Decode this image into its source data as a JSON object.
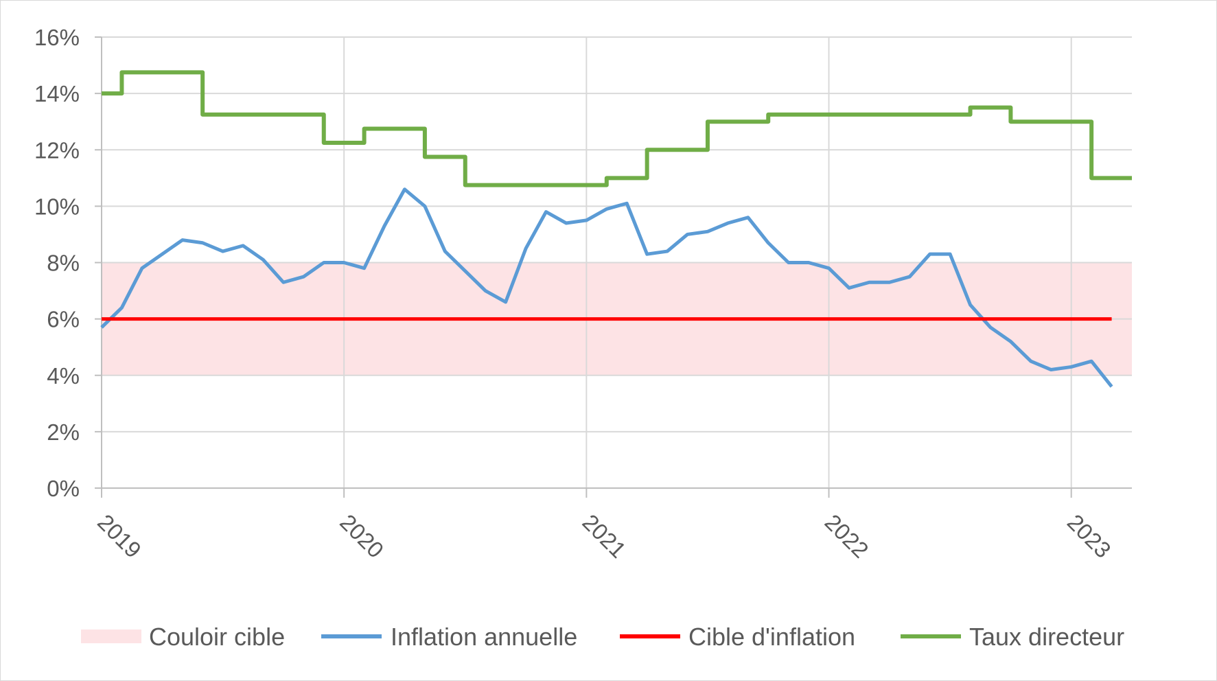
{
  "chart_data": {
    "type": "line",
    "title": "",
    "xlabel": "",
    "ylabel": "",
    "ylim": [
      0,
      16
    ],
    "y_ticks": [
      "0%",
      "2%",
      "4%",
      "6%",
      "8%",
      "10%",
      "12%",
      "14%",
      "16%"
    ],
    "x_tick_labels": [
      "2019",
      "2020",
      "2021",
      "2022",
      "2023"
    ],
    "xlim": [
      "2019-01",
      "2023-04"
    ],
    "grid": true,
    "legend_position": "bottom",
    "target_band": {
      "name": "Couloir cible",
      "low": 4,
      "high": 8,
      "color": "#fde3e5"
    },
    "series": [
      {
        "name": "Inflation annuelle",
        "color": "#5b9bd5",
        "style": "line",
        "x": [
          "2019-01",
          "2019-02",
          "2019-03",
          "2019-04",
          "2019-05",
          "2019-06",
          "2019-07",
          "2019-08",
          "2019-09",
          "2019-10",
          "2019-11",
          "2019-12",
          "2020-01",
          "2020-02",
          "2020-03",
          "2020-04",
          "2020-05",
          "2020-06",
          "2020-07",
          "2020-08",
          "2020-09",
          "2020-10",
          "2020-11",
          "2020-12",
          "2021-01",
          "2021-02",
          "2021-03",
          "2021-04",
          "2021-05",
          "2021-06",
          "2021-07",
          "2021-08",
          "2021-09",
          "2021-10",
          "2021-11",
          "2021-12",
          "2022-01",
          "2022-02",
          "2022-03",
          "2022-04",
          "2022-05",
          "2022-06",
          "2022-07",
          "2022-08",
          "2022-09",
          "2022-10",
          "2022-11",
          "2022-12",
          "2023-01",
          "2023-02",
          "2023-03"
        ],
        "values": [
          5.7,
          6.4,
          7.8,
          8.3,
          8.8,
          8.7,
          8.4,
          8.6,
          8.1,
          7.3,
          7.5,
          8.0,
          8.0,
          7.8,
          9.3,
          10.6,
          10.0,
          8.4,
          7.7,
          7.0,
          6.6,
          8.5,
          9.8,
          9.4,
          9.5,
          9.9,
          10.1,
          8.3,
          8.4,
          9.0,
          9.1,
          9.4,
          9.6,
          8.7,
          8.0,
          8.0,
          7.8,
          7.1,
          7.3,
          7.3,
          7.5,
          8.3,
          8.3,
          6.5,
          5.7,
          5.2,
          4.5,
          4.2,
          4.3,
          4.5,
          3.6
        ]
      },
      {
        "name": "Cible d'inflation",
        "color": "#ff0000",
        "style": "line",
        "x": [
          "2019-01",
          "2023-03"
        ],
        "values": [
          6,
          6
        ]
      },
      {
        "name": "Taux directeur",
        "color": "#70ad47",
        "style": "step",
        "x": [
          "2019-01",
          "2019-02",
          "2019-06",
          "2019-12",
          "2020-02",
          "2020-05",
          "2020-07",
          "2021-02",
          "2021-04",
          "2021-07",
          "2021-10",
          "2022-08",
          "2022-10",
          "2023-02",
          "2023-04"
        ],
        "values": [
          14,
          14.75,
          13.25,
          12.25,
          12.75,
          11.75,
          10.75,
          11.0,
          12.0,
          13.0,
          13.25,
          13.5,
          13.0,
          11.0,
          11.0
        ]
      }
    ],
    "legend": [
      {
        "name": "Couloir cible",
        "kind": "band",
        "color": "#fde3e5"
      },
      {
        "name": "Inflation annuelle",
        "kind": "line",
        "color": "#5b9bd5"
      },
      {
        "name": "Cible d'inflation",
        "kind": "line",
        "color": "#ff0000"
      },
      {
        "name": "Taux directeur",
        "kind": "line",
        "color": "#70ad47"
      }
    ]
  }
}
